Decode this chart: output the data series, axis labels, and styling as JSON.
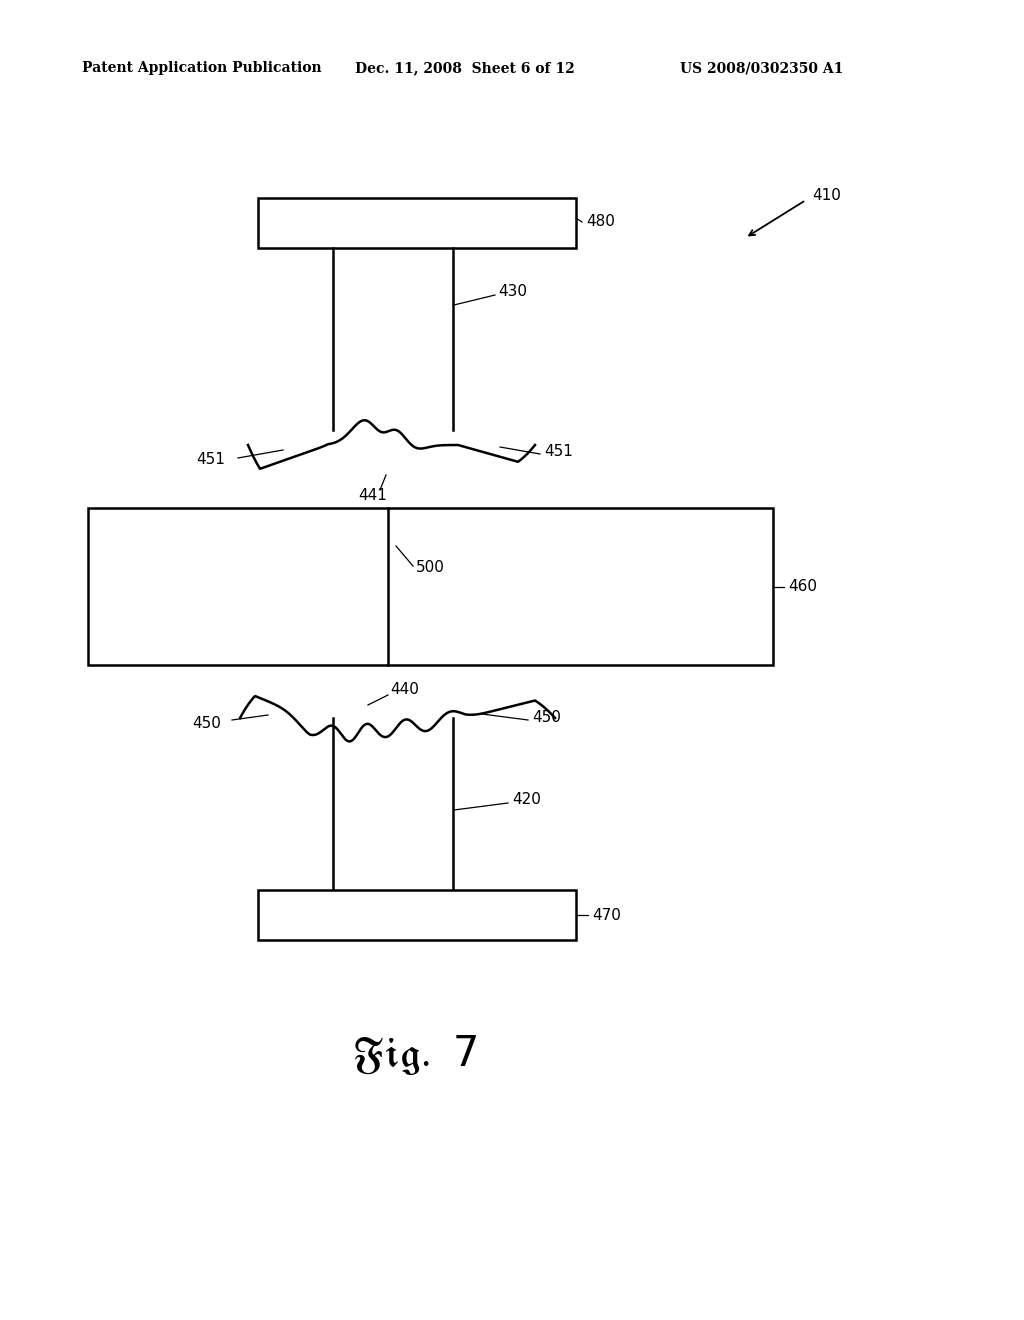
{
  "bg_color": "#ffffff",
  "header_left": "Patent Application Publication",
  "header_mid": "Dec. 11, 2008  Sheet 6 of 12",
  "header_right": "US 2008/0302350 A1",
  "lw": 1.8,
  "lc": "#000000"
}
